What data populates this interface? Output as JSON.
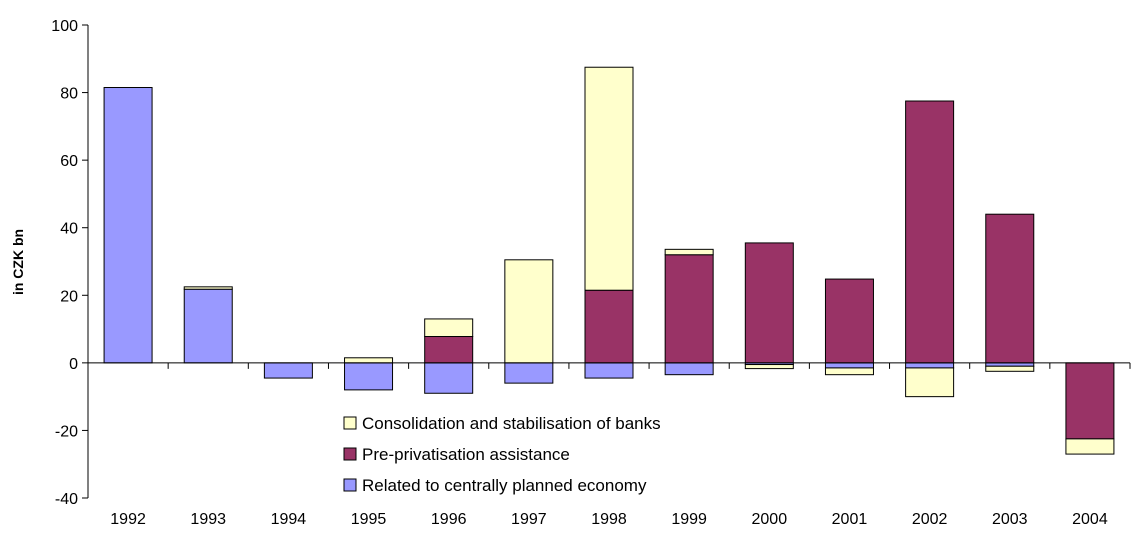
{
  "chart_data": {
    "type": "bar",
    "stacked": true,
    "ylabel": "in CZK bn",
    "ylim": [
      -40,
      100
    ],
    "yticks": [
      -40,
      -20,
      0,
      20,
      40,
      60,
      80,
      100
    ],
    "categories": [
      "1992",
      "1993",
      "1994",
      "1995",
      "1996",
      "1997",
      "1998",
      "1999",
      "2000",
      "2001",
      "2002",
      "2003",
      "2004"
    ],
    "series": [
      {
        "name": "Related to centrally planned economy",
        "color": "#9999ff",
        "values": [
          81.5,
          21.8,
          -4.5,
          -8,
          -9,
          -6,
          -4.5,
          -3.5,
          -0.5,
          -1.5,
          -1.5,
          -1,
          0
        ]
      },
      {
        "name": "Pre-privatisation assistance",
        "color": "#993366",
        "values": [
          0,
          0,
          0,
          0,
          7.8,
          0,
          21.5,
          32,
          35.5,
          24.8,
          77.5,
          44,
          -22.5
        ]
      },
      {
        "name": "Consolidation and stabilisation of banks",
        "color": "#ffffcc",
        "values": [
          0,
          0.7,
          0,
          1.5,
          5.2,
          30.5,
          66,
          1.6,
          -1.2,
          -2,
          -8.5,
          -1.5,
          -4.5
        ]
      }
    ],
    "legend": {
      "position": "bottom-center",
      "order": [
        "Consolidation and stabilisation of banks",
        "Pre-privatisation assistance",
        "Related to centrally planned economy"
      ]
    },
    "grid": false
  }
}
